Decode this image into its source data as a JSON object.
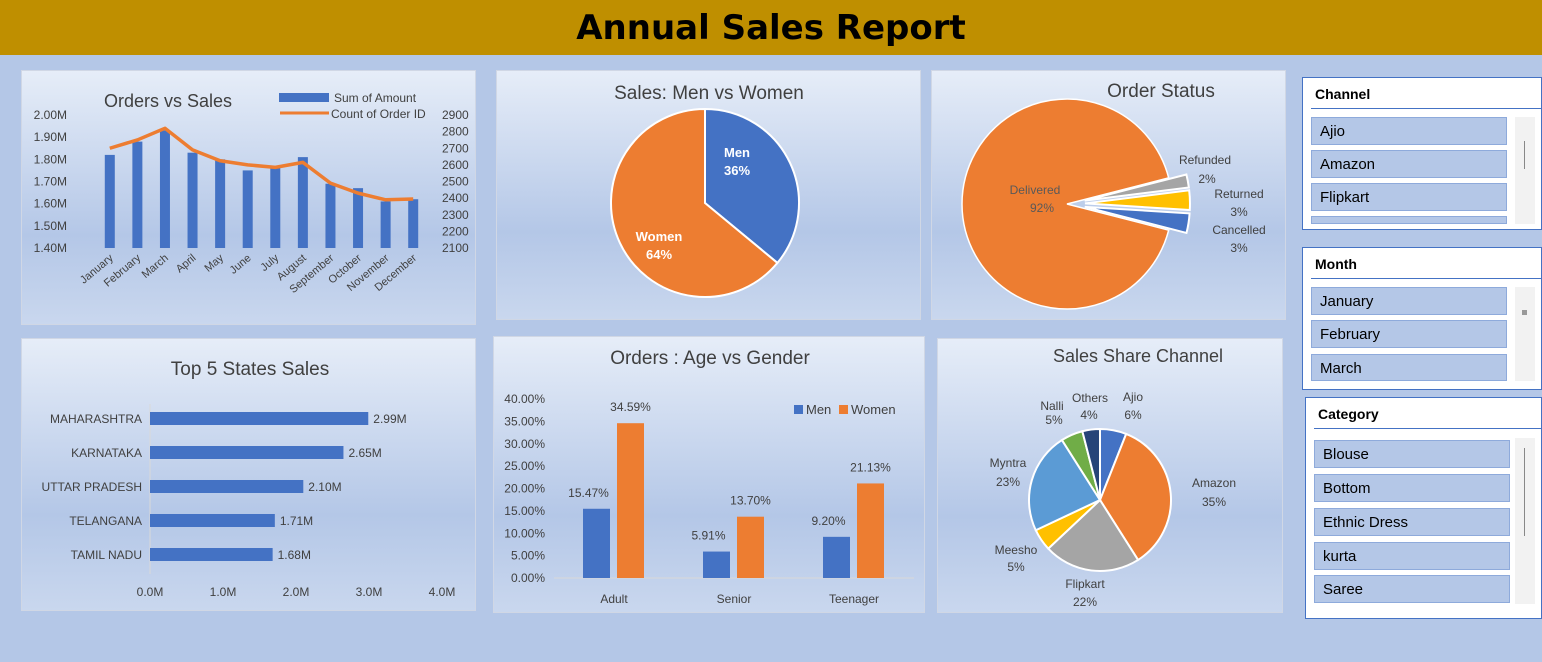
{
  "title": "Annual Sales Report",
  "colors": {
    "blue": "#4472c4",
    "orange": "#ed7d31",
    "gray": "#a5a5a5",
    "yellow": "#ffc000",
    "lightblue": "#5b9bd5",
    "green": "#70ad47",
    "navy": "#264478",
    "banner": "#bf8f00"
  },
  "chart_data": [
    {
      "id": "orders_vs_sales",
      "type": "bar",
      "title": "Orders vs Sales",
      "categories": [
        "January",
        "February",
        "March",
        "April",
        "May",
        "June",
        "July",
        "August",
        "September",
        "October",
        "November",
        "December"
      ],
      "series": [
        {
          "name": "Sum of Amount",
          "type": "bar",
          "axis": "left",
          "values": [
            1.82,
            1.88,
            1.93,
            1.83,
            1.8,
            1.75,
            1.77,
            1.81,
            1.69,
            1.67,
            1.61,
            1.62
          ]
        },
        {
          "name": "Count of Order ID",
          "type": "line",
          "axis": "right",
          "values": [
            2700,
            2750,
            2820,
            2690,
            2625,
            2600,
            2585,
            2615,
            2490,
            2430,
            2390,
            2395
          ]
        }
      ],
      "left_axis": {
        "ylim": [
          1.4,
          2.0
        ],
        "ticks": [
          "1.40M",
          "1.50M",
          "1.60M",
          "1.70M",
          "1.80M",
          "1.90M",
          "2.00M"
        ]
      },
      "right_axis": {
        "ylim": [
          2100,
          2900
        ],
        "ticks": [
          "2100",
          "2200",
          "2300",
          "2400",
          "2500",
          "2600",
          "2700",
          "2800",
          "2900"
        ]
      },
      "legend": "top-right"
    },
    {
      "id": "men_vs_women",
      "type": "pie",
      "title": "Sales: Men vs Women",
      "slices": [
        {
          "label": "Men",
          "value": 36,
          "text": "36%",
          "color": "#4472c4"
        },
        {
          "label": "Women",
          "value": 64,
          "text": "64%",
          "color": "#ed7d31"
        }
      ]
    },
    {
      "id": "order_status",
      "type": "pie",
      "title": "Order Status",
      "slices": [
        {
          "label": "Delivered",
          "value": 92,
          "text": "92%",
          "color": "#ed7d31"
        },
        {
          "label": "Refunded",
          "value": 2,
          "text": "2%",
          "color": "#a5a5a5"
        },
        {
          "label": "Returned",
          "value": 3,
          "text": "3%",
          "color": "#ffc000"
        },
        {
          "label": "Cancelled",
          "value": 3,
          "text": "3%",
          "color": "#4472c4"
        }
      ]
    },
    {
      "id": "top_states",
      "type": "bar",
      "orientation": "horizontal",
      "title": "Top 5 States Sales",
      "categories": [
        "MAHARASHTRA",
        "KARNATAKA",
        "UTTAR PRADESH",
        "TELANGANA",
        "TAMIL NADU"
      ],
      "values": [
        2.99,
        2.65,
        2.1,
        1.71,
        1.68
      ],
      "value_labels": [
        "2.99M",
        "2.65M",
        "2.10M",
        "1.71M",
        "1.68M"
      ],
      "xlim": [
        0,
        4
      ],
      "ticks": [
        "0.0M",
        "1.0M",
        "2.0M",
        "3.0M",
        "4.0M"
      ]
    },
    {
      "id": "age_vs_gender",
      "type": "bar",
      "title": "Orders : Age vs Gender",
      "categories": [
        "Adult",
        "Senior",
        "Teenager"
      ],
      "series": [
        {
          "name": "Men",
          "values": [
            15.47,
            5.91,
            9.2
          ],
          "labels": [
            "15.47%",
            "5.91%",
            "9.20%"
          ],
          "color": "#4472c4"
        },
        {
          "name": "Women",
          "values": [
            34.59,
            13.7,
            21.13
          ],
          "labels": [
            "34.59%",
            "13.70%",
            "21.13%"
          ],
          "color": "#ed7d31"
        }
      ],
      "ylim": [
        0,
        40
      ],
      "ticks": [
        "0.00%",
        "5.00%",
        "10.00%",
        "15.00%",
        "20.00%",
        "25.00%",
        "30.00%",
        "35.00%",
        "40.00%"
      ],
      "legend": "top-right"
    },
    {
      "id": "channel_share",
      "type": "pie",
      "title": "Sales Share Channel",
      "slices": [
        {
          "label": "Ajio",
          "value": 6,
          "text": "6%",
          "color": "#4472c4"
        },
        {
          "label": "Amazon",
          "value": 35,
          "text": "35%",
          "color": "#ed7d31"
        },
        {
          "label": "Flipkart",
          "value": 22,
          "text": "22%",
          "color": "#a5a5a5"
        },
        {
          "label": "Meesho",
          "value": 5,
          "text": "5%",
          "color": "#ffc000"
        },
        {
          "label": "Myntra",
          "value": 23,
          "text": "23%",
          "color": "#5b9bd5"
        },
        {
          "label": "Nalli",
          "value": 5,
          "text": "5%",
          "color": "#70ad47"
        },
        {
          "label": "Others",
          "value": 4,
          "text": "4%",
          "color": "#264478"
        }
      ]
    }
  ],
  "slicers": {
    "channel": {
      "header": "Channel",
      "items": [
        "Ajio",
        "Amazon",
        "Flipkart"
      ]
    },
    "month": {
      "header": "Month",
      "items": [
        "January",
        "February",
        "March"
      ]
    },
    "category": {
      "header": "Category",
      "items": [
        "Blouse",
        "Bottom",
        "Ethnic Dress",
        "kurta",
        "Saree"
      ]
    }
  }
}
